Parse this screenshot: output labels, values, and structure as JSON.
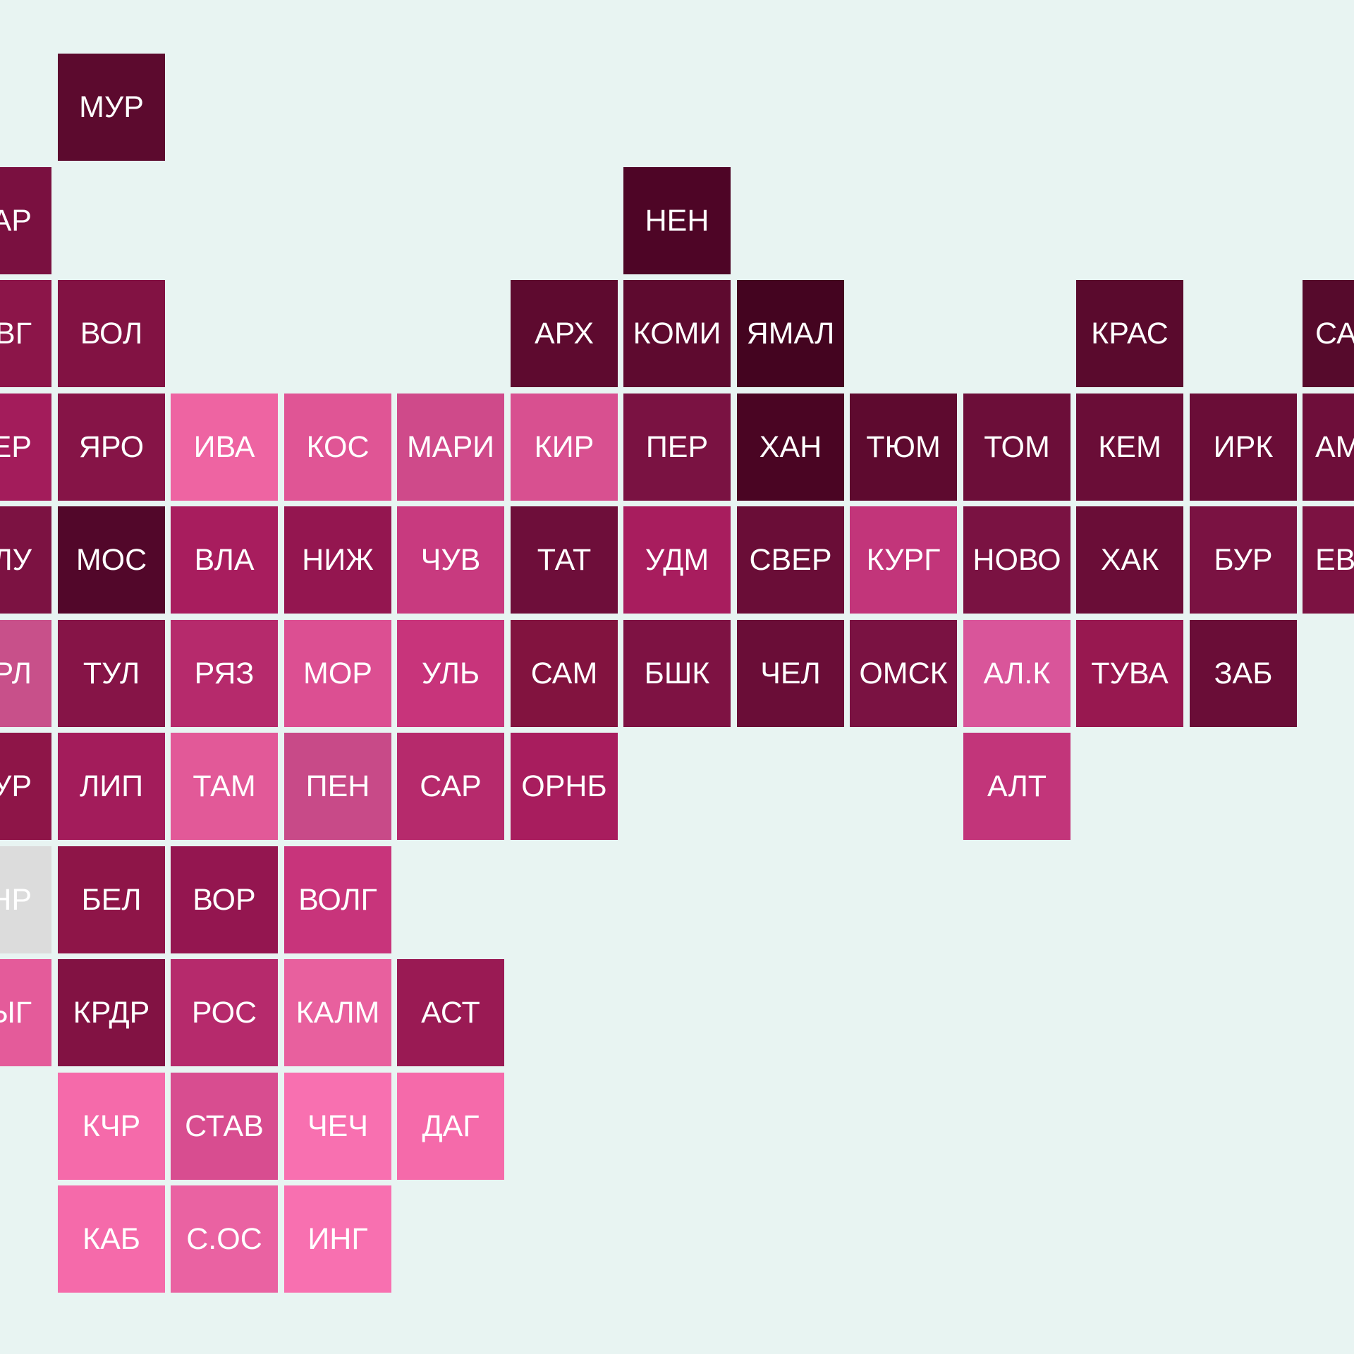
{
  "map": {
    "regions": [
      {
        "label": "МУР",
        "row": 0,
        "col": 1,
        "color": "#5c0a2e"
      },
      {
        "label": "АР",
        "row": 1,
        "col": 0,
        "color": "#7a1040",
        "align": "right"
      },
      {
        "label": "НЕН",
        "row": 1,
        "col": 6,
        "color": "#4e0526"
      },
      {
        "label": "ВГ",
        "row": 2,
        "col": 0,
        "color": "#8c1549",
        "align": "right"
      },
      {
        "label": "ВОЛ",
        "row": 2,
        "col": 1,
        "color": "#821243"
      },
      {
        "label": "АРХ",
        "row": 2,
        "col": 5,
        "color": "#5e0a2f"
      },
      {
        "label": "КОМИ",
        "row": 2,
        "col": 6,
        "color": "#5e0a2f"
      },
      {
        "label": "ЯМАЛ",
        "row": 2,
        "col": 7,
        "color": "#440420"
      },
      {
        "label": "КРАС",
        "row": 2,
        "col": 10,
        "color": "#5a0a2d"
      },
      {
        "label": "СА",
        "row": 2,
        "col": 12,
        "color": "#560a2c",
        "align": "left"
      },
      {
        "label": "ЕР",
        "row": 3,
        "col": 0,
        "color": "#a31c5b",
        "align": "right"
      },
      {
        "label": "ЯРО",
        "row": 3,
        "col": 1,
        "color": "#861447"
      },
      {
        "label": "ИВА",
        "row": 3,
        "col": 2,
        "color": "#ee64a2"
      },
      {
        "label": "КОС",
        "row": 3,
        "col": 3,
        "color": "#e05595"
      },
      {
        "label": "МАРИ",
        "row": 3,
        "col": 4,
        "color": "#cf4a8a"
      },
      {
        "label": "КИР",
        "row": 3,
        "col": 5,
        "color": "#d85090"
      },
      {
        "label": "ПЕР",
        "row": 3,
        "col": 6,
        "color": "#7a1242"
      },
      {
        "label": "ХАН",
        "row": 3,
        "col": 7,
        "color": "#4a0523"
      },
      {
        "label": "ТЮМ",
        "row": 3,
        "col": 8,
        "color": "#5e0a2f"
      },
      {
        "label": "ТОМ",
        "row": 3,
        "col": 9,
        "color": "#6c0e39"
      },
      {
        "label": "КЕМ",
        "row": 3,
        "col": 10,
        "color": "#6a0d37"
      },
      {
        "label": "ИРК",
        "row": 3,
        "col": 11,
        "color": "#6a0d37"
      },
      {
        "label": "АМ",
        "row": 3,
        "col": 12,
        "color": "#6e0e3a",
        "align": "left"
      },
      {
        "label": "ЛУ",
        "row": 4,
        "col": 0,
        "color": "#7c1242",
        "align": "right"
      },
      {
        "label": "МОС",
        "row": 4,
        "col": 1,
        "color": "#52072a"
      },
      {
        "label": "ВЛА",
        "row": 4,
        "col": 2,
        "color": "#a81d5e"
      },
      {
        "label": "НИЖ",
        "row": 4,
        "col": 3,
        "color": "#941650"
      },
      {
        "label": "ЧУВ",
        "row": 4,
        "col": 4,
        "color": "#c83a7f"
      },
      {
        "label": "ТАТ",
        "row": 4,
        "col": 5,
        "color": "#6e0e3a"
      },
      {
        "label": "УДМ",
        "row": 4,
        "col": 6,
        "color": "#a81d5e"
      },
      {
        "label": "СВЕР",
        "row": 4,
        "col": 7,
        "color": "#6a0d37"
      },
      {
        "label": "КУРГ",
        "row": 4,
        "col": 8,
        "color": "#c2357a"
      },
      {
        "label": "НОВО",
        "row": 4,
        "col": 9,
        "color": "#7a1242"
      },
      {
        "label": "ХАК",
        "row": 4,
        "col": 10,
        "color": "#6a0d37"
      },
      {
        "label": "БУР",
        "row": 4,
        "col": 11,
        "color": "#7a1242"
      },
      {
        "label": "ЕВ",
        "row": 4,
        "col": 12,
        "color": "#7c1242",
        "align": "left"
      },
      {
        "label": "РЛ",
        "row": 5,
        "col": 0,
        "color": "#c8508a",
        "align": "right"
      },
      {
        "label": "ТУЛ",
        "row": 5,
        "col": 1,
        "color": "#861447"
      },
      {
        "label": "РЯЗ",
        "row": 5,
        "col": 2,
        "color": "#b62a6c"
      },
      {
        "label": "МОР",
        "row": 5,
        "col": 3,
        "color": "#dc4f92"
      },
      {
        "label": "УЛЬ",
        "row": 5,
        "col": 4,
        "color": "#c8347b"
      },
      {
        "label": "САМ",
        "row": 5,
        "col": 5,
        "color": "#82133f"
      },
      {
        "label": "БШК",
        "row": 5,
        "col": 6,
        "color": "#7e1243"
      },
      {
        "label": "ЧЕЛ",
        "row": 5,
        "col": 7,
        "color": "#6a0d37"
      },
      {
        "label": "ОМСК",
        "row": 5,
        "col": 8,
        "color": "#7a1242"
      },
      {
        "label": "АЛ.К",
        "row": 5,
        "col": 9,
        "color": "#d9559a"
      },
      {
        "label": "ТУВА",
        "row": 5,
        "col": 10,
        "color": "#981850"
      },
      {
        "label": "ЗАБ",
        "row": 5,
        "col": 11,
        "color": "#6a0d37"
      },
      {
        "label": "УР",
        "row": 6,
        "col": 0,
        "color": "#8e1548",
        "align": "right"
      },
      {
        "label": "ЛИП",
        "row": 6,
        "col": 1,
        "color": "#a31c5b"
      },
      {
        "label": "ТАМ",
        "row": 6,
        "col": 2,
        "color": "#e25998"
      },
      {
        "label": "ПЕН",
        "row": 6,
        "col": 3,
        "color": "#c84a88"
      },
      {
        "label": "САР",
        "row": 6,
        "col": 4,
        "color": "#b62a6c"
      },
      {
        "label": "ОРНБ",
        "row": 6,
        "col": 5,
        "color": "#a81d5e"
      },
      {
        "label": "АЛТ",
        "row": 6,
        "col": 9,
        "color": "#c2357a"
      },
      {
        "label": "НР",
        "row": 7,
        "col": 0,
        "color": "#dcdcdc",
        "align": "right"
      },
      {
        "label": "БЕЛ",
        "row": 7,
        "col": 1,
        "color": "#8e1548"
      },
      {
        "label": "ВОР",
        "row": 7,
        "col": 2,
        "color": "#941650"
      },
      {
        "label": "ВОЛГ",
        "row": 7,
        "col": 3,
        "color": "#c8347b"
      },
      {
        "label": "ЫГ",
        "row": 8,
        "col": 0,
        "color": "#e45b9a",
        "align": "right"
      },
      {
        "label": "КРДР",
        "row": 8,
        "col": 1,
        "color": "#821243"
      },
      {
        "label": "РОС",
        "row": 8,
        "col": 2,
        "color": "#b62a6c"
      },
      {
        "label": "КАЛМ",
        "row": 8,
        "col": 3,
        "color": "#e8609e"
      },
      {
        "label": "АСТ",
        "row": 8,
        "col": 4,
        "color": "#9a1a54"
      },
      {
        "label": "КЧР",
        "row": 9,
        "col": 1,
        "color": "#f56aaa"
      },
      {
        "label": "СТАВ",
        "row": 9,
        "col": 2,
        "color": "#d84d90"
      },
      {
        "label": "ЧЕЧ",
        "row": 9,
        "col": 3,
        "color": "#f870b0"
      },
      {
        "label": "ДАГ",
        "row": 9,
        "col": 4,
        "color": "#f56aaa"
      },
      {
        "label": "КАБ",
        "row": 10,
        "col": 1,
        "color": "#f56aaa"
      },
      {
        "label": "С.ОС",
        "row": 10,
        "col": 2,
        "color": "#ea62a2"
      },
      {
        "label": "ИНГ",
        "row": 10,
        "col": 3,
        "color": "#f870b0"
      }
    ]
  }
}
